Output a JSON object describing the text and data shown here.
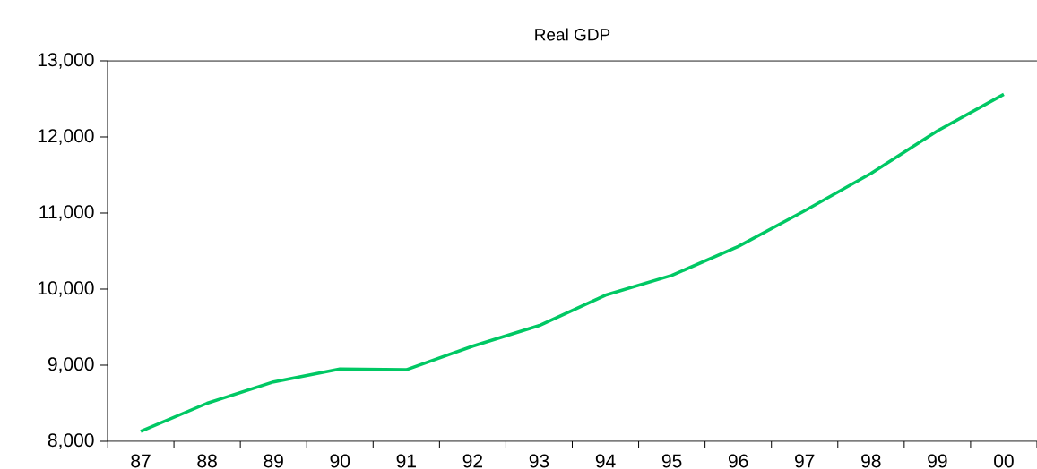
{
  "chart_data": {
    "type": "line",
    "title": "Real GDP",
    "categories": [
      "87",
      "88",
      "89",
      "90",
      "91",
      "92",
      "93",
      "94",
      "95",
      "96",
      "97",
      "98",
      "99",
      "00"
    ],
    "values": [
      8130,
      8500,
      8780,
      8950,
      8940,
      9250,
      9520,
      9920,
      10180,
      10560,
      11030,
      11520,
      12080,
      12560
    ],
    "color": "#00c864",
    "ylim": [
      8000,
      13000
    ],
    "yticks": [
      {
        "value": 8000,
        "label": "8,000"
      },
      {
        "value": 9000,
        "label": "9,000"
      },
      {
        "value": 10000,
        "label": "10,000"
      },
      {
        "value": 11000,
        "label": "11,000"
      },
      {
        "value": 12000,
        "label": "12,000"
      },
      {
        "value": 13000,
        "label": "13,000"
      }
    ],
    "marker": "none",
    "line_style": "solid"
  }
}
